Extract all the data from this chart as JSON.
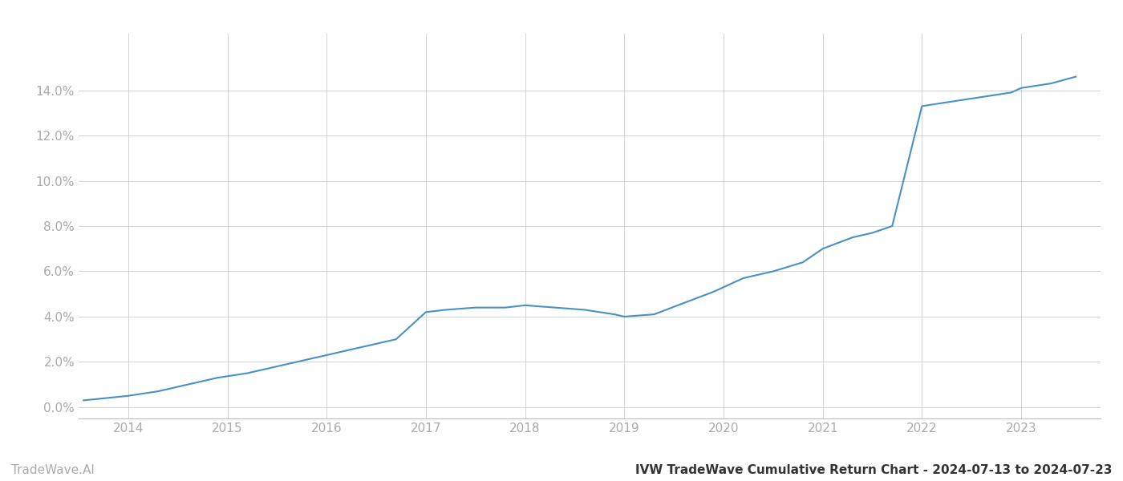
{
  "title": "IVW TradeWave Cumulative Return Chart - 2024-07-13 to 2024-07-23",
  "watermark": "TradeWave.AI",
  "line_color": "#4a90c4",
  "background_color": "#ffffff",
  "grid_color": "#cccccc",
  "x_values": [
    2013.55,
    2014.0,
    2014.3,
    2014.6,
    2014.9,
    2015.2,
    2015.5,
    2015.8,
    2016.1,
    2016.4,
    2016.7,
    2017.0,
    2017.2,
    2017.5,
    2017.8,
    2018.0,
    2018.3,
    2018.6,
    2018.9,
    2019.0,
    2019.3,
    2019.6,
    2019.9,
    2020.2,
    2020.5,
    2020.8,
    2021.0,
    2021.3,
    2021.5,
    2021.7,
    2022.0,
    2022.3,
    2022.6,
    2022.9,
    2023.0,
    2023.3,
    2023.55
  ],
  "y_values": [
    0.003,
    0.005,
    0.007,
    0.01,
    0.013,
    0.015,
    0.018,
    0.021,
    0.024,
    0.027,
    0.03,
    0.042,
    0.043,
    0.044,
    0.044,
    0.045,
    0.044,
    0.043,
    0.041,
    0.04,
    0.041,
    0.046,
    0.051,
    0.057,
    0.06,
    0.064,
    0.07,
    0.075,
    0.077,
    0.08,
    0.133,
    0.135,
    0.137,
    0.139,
    0.141,
    0.143,
    0.146
  ],
  "xlim": [
    2013.5,
    2023.8
  ],
  "ylim": [
    -0.005,
    0.165
  ],
  "yticks": [
    0.0,
    0.02,
    0.04,
    0.06,
    0.08,
    0.1,
    0.12,
    0.14
  ],
  "xticks": [
    2014,
    2015,
    2016,
    2017,
    2018,
    2019,
    2020,
    2021,
    2022,
    2023
  ],
  "line_width": 1.5,
  "tick_label_color": "#aaaaaa",
  "tick_label_fontsize": 11,
  "title_fontsize": 11,
  "watermark_fontsize": 11,
  "spine_color": "#bbbbbb"
}
